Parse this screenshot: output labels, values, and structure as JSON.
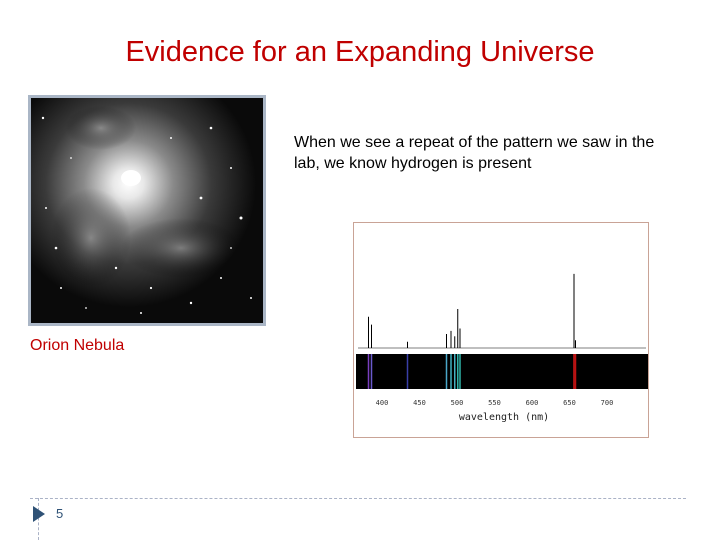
{
  "slide": {
    "title": "Evidence for an Expanding Universe",
    "body_text": "When we see a repeat of the pattern we saw in the lab, we know hydrogen is present",
    "caption": "Orion Nebula",
    "page_number": "5"
  },
  "spectrum": {
    "x_ticks": [
      "400",
      "450",
      "500",
      "550",
      "600",
      "650",
      "700"
    ],
    "xlabel": "wavelength (nm)",
    "lines": [
      {
        "nm": 382,
        "intensity": 0.4,
        "color": "#7a3fbf"
      },
      {
        "nm": 386,
        "intensity": 0.3,
        "color": "#6a5acd"
      },
      {
        "nm": 434,
        "intensity": 0.08,
        "color": "#3a3fa8"
      },
      {
        "nm": 486,
        "intensity": 0.18,
        "color": "#4aa7c9"
      },
      {
        "nm": 492,
        "intensity": 0.22,
        "color": "#3fb0bf"
      },
      {
        "nm": 497,
        "intensity": 0.15,
        "color": "#45b0c0"
      },
      {
        "nm": 501,
        "intensity": 0.5,
        "color": "#2fb2a8"
      },
      {
        "nm": 504,
        "intensity": 0.25,
        "color": "#2fb2a8"
      },
      {
        "nm": 656,
        "intensity": 0.95,
        "color": "#d01818"
      },
      {
        "nm": 658,
        "intensity": 0.1,
        "color": "#c01010"
      }
    ]
  },
  "colors": {
    "title": "#c00000",
    "caption": "#c00000",
    "footer_accent": "#2f5276",
    "h_alpha": "#d01818"
  }
}
